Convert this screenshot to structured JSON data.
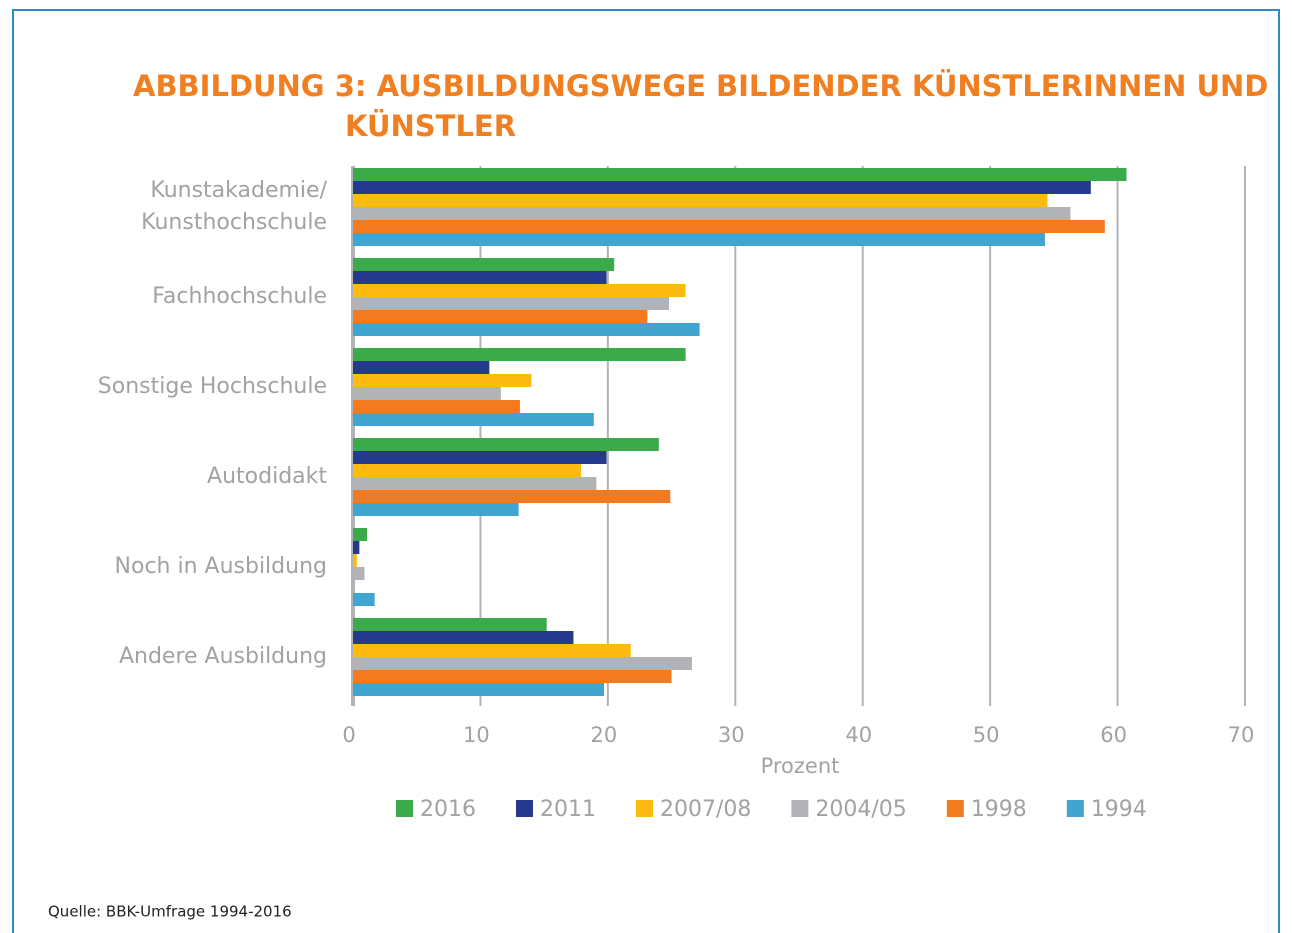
{
  "chart_data": {
    "type": "hbar",
    "title": [
      "ABBILDUNG 3: AUSBILDUNGSWEGE BILDENDER KÜNSTLERINNEN UND",
      "KÜNSTLER"
    ],
    "categories": [
      "Kunstakademie/\nKunsthochschule",
      "Fachhochschule",
      "Sonstige Hochschule",
      "Autodidakt",
      "Noch in Ausbildung",
      "Andere Ausbildung"
    ],
    "series": [
      {
        "name": "2016",
        "color": "#3aaa4a",
        "values": [
          60.7,
          20.5,
          26.1,
          24.0,
          1.1,
          15.2
        ]
      },
      {
        "name": "2011",
        "color": "#253a8e",
        "values": [
          57.9,
          19.9,
          10.7,
          19.9,
          0.5,
          17.3
        ]
      },
      {
        "name": "2007/08",
        "color": "#fdbb12",
        "values": [
          54.5,
          26.1,
          14.0,
          17.9,
          0.3,
          21.8
        ]
      },
      {
        "name": "2004/05",
        "color": "#b1b3b6",
        "values": [
          56.3,
          24.8,
          11.6,
          19.1,
          0.9,
          26.6
        ]
      },
      {
        "name": "1998",
        "color": "#f47a20",
        "values": [
          59.0,
          23.1,
          13.1,
          24.9,
          0,
          25.0
        ]
      },
      {
        "name": "1994",
        "color": "#41a6cf",
        "values": [
          54.3,
          27.2,
          18.9,
          13.0,
          1.7,
          19.7
        ]
      }
    ],
    "xlabel": "Prozent",
    "xlim": [
      0,
      70
    ],
    "xticks": [
      0,
      10,
      20,
      30,
      40,
      50,
      60,
      70
    ],
    "grid": true,
    "legend": "bottom",
    "source": "Quelle: BBK-Umfrage 1994-2016"
  }
}
